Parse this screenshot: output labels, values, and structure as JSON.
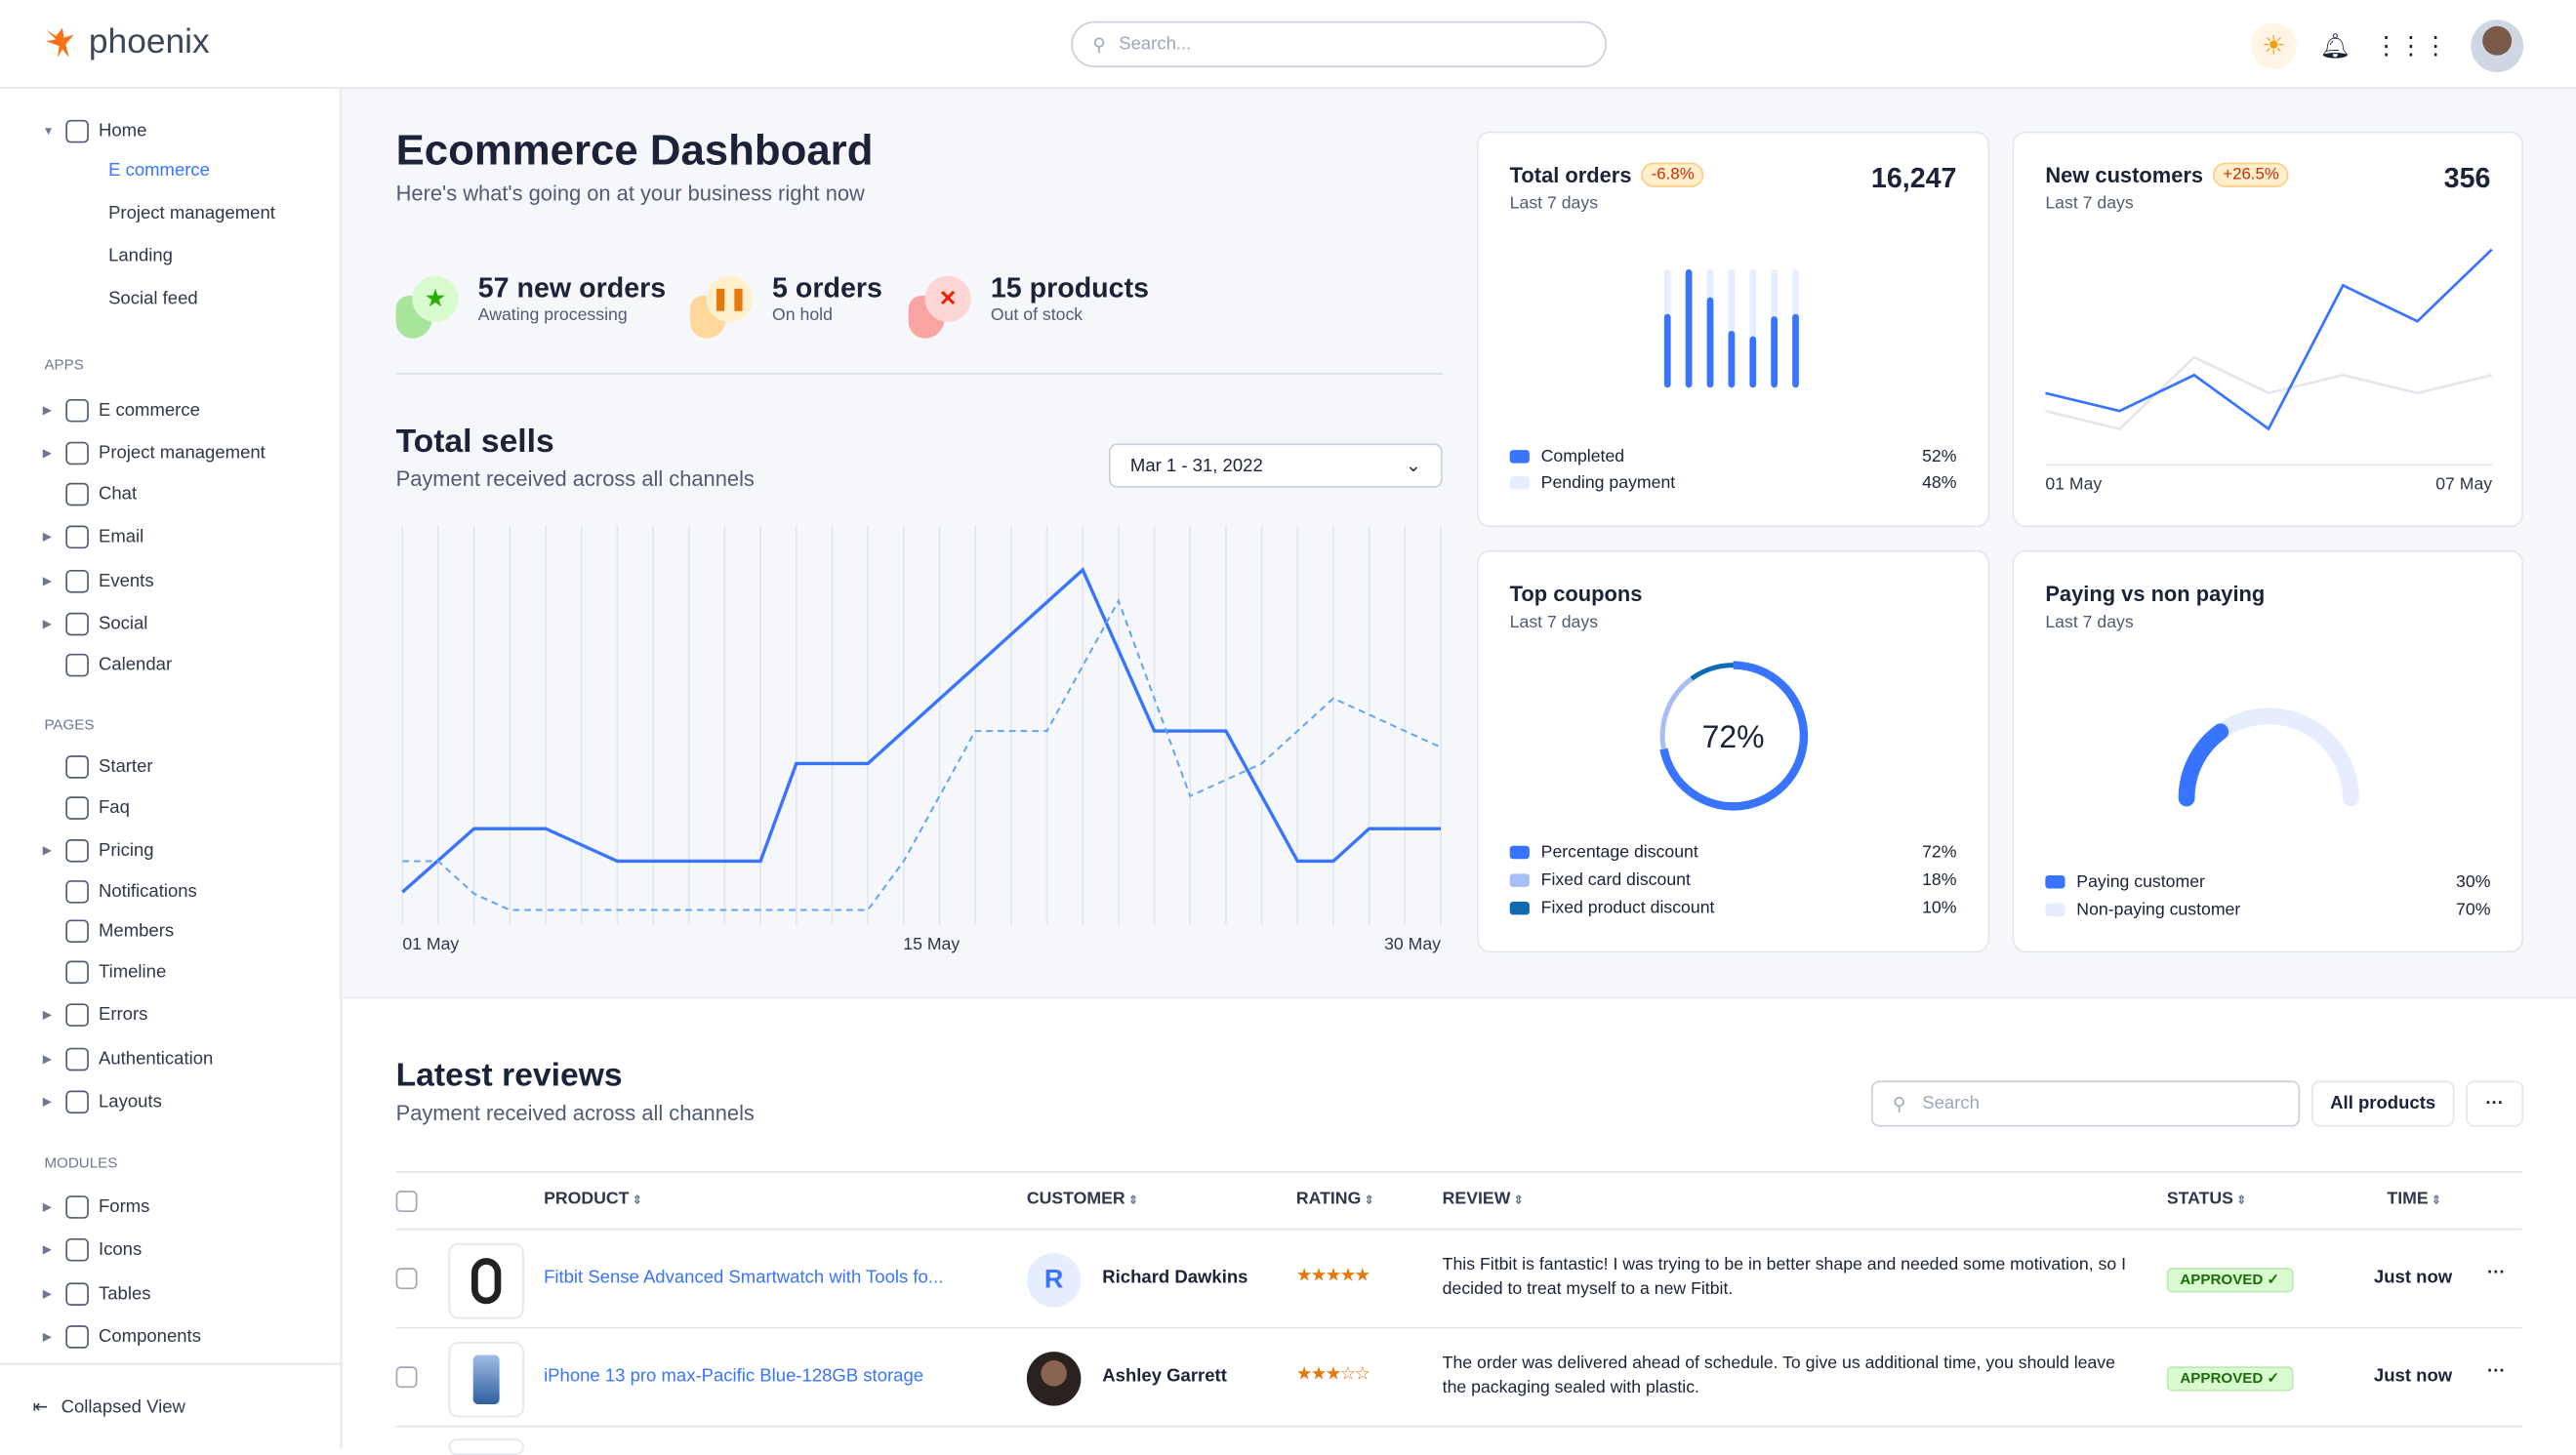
{
  "topbar": {
    "logo": "phoenix",
    "search_placeholder": "Search..."
  },
  "sidebar": {
    "home": "Home",
    "home_items": [
      "E commerce",
      "Project management",
      "Landing",
      "Social feed"
    ],
    "apps_label": "APPS",
    "apps": [
      "E commerce",
      "Project management",
      "Chat",
      "Email",
      "Events",
      "Social",
      "Calendar"
    ],
    "pages_label": "PAGES",
    "pages": [
      "Starter",
      "Faq",
      "Pricing",
      "Notifications",
      "Members",
      "Timeline",
      "Errors",
      "Authentication",
      "Layouts"
    ],
    "modules_label": "MODULES",
    "modules": [
      "Forms",
      "Icons",
      "Tables",
      "Components"
    ],
    "collapsed": "Collapsed View"
  },
  "header": {
    "title": "Ecommerce Dashboard",
    "subtitle": "Here's what's going on at your business right now"
  },
  "stats": [
    {
      "title": "57 new orders",
      "sub": "Awating processing",
      "icon": "star-icon",
      "color": "#25b003"
    },
    {
      "title": "5 orders",
      "sub": "On hold",
      "icon": "pause-icon",
      "color": "#e5780b"
    },
    {
      "title": "15 products",
      "sub": "Out of stock",
      "icon": "x-icon",
      "color": "#ec1f00"
    }
  ],
  "sells": {
    "title": "Total sells",
    "subtitle": "Payment received across all channels",
    "date_range": "Mar 1 - 31, 2022",
    "x_labels": [
      "01 May",
      "15 May",
      "30 May"
    ]
  },
  "chart_data": [
    {
      "type": "line",
      "title": "Total sells",
      "x_range": [
        1,
        30
      ],
      "x_labels": [
        "01 May",
        "15 May",
        "30 May"
      ],
      "series": [
        {
          "style": "solid",
          "color": "#3874ff",
          "x": [
            1,
            3,
            5,
            7,
            11,
            12,
            14,
            20,
            22,
            24,
            26,
            27,
            28,
            30
          ],
          "y": [
            20,
            59,
            59,
            39,
            39,
            99,
            99,
            218,
            119,
            119,
            39,
            39,
            59,
            59
          ]
        },
        {
          "style": "dashed",
          "color": "#60a5fa",
          "x": [
            1,
            2,
            3,
            4,
            14,
            15,
            17,
            19,
            21,
            23,
            25,
            27,
            30
          ],
          "y": [
            39,
            39,
            19,
            9,
            9,
            39,
            119,
            119,
            199,
            79,
            99,
            139,
            109
          ]
        }
      ],
      "ylim": [
        0,
        220
      ]
    },
    {
      "type": "bar",
      "title": "Total orders",
      "completed": [
        60,
        100,
        75,
        45,
        40,
        58,
        60
      ],
      "max": 100
    },
    {
      "type": "line",
      "title": "New customers",
      "x_labels": [
        "01 May",
        "07 May"
      ],
      "series": [
        {
          "color": "#3874ff",
          "y": [
            40,
            30,
            50,
            20,
            100,
            80,
            120
          ]
        },
        {
          "color": "#e3e6ed",
          "y": [
            30,
            20,
            60,
            40,
            50,
            40,
            50
          ]
        }
      ],
      "ylim": [
        0,
        130
      ]
    },
    {
      "type": "pie",
      "title": "Top coupons",
      "values": [
        72,
        18,
        10
      ]
    },
    {
      "type": "gauge",
      "title": "Paying vs non paying",
      "values": [
        30,
        70
      ]
    }
  ],
  "total_orders": {
    "title": "Total orders",
    "badge": "-6.8%",
    "sub": "Last 7 days",
    "value": "16,247",
    "legend": [
      {
        "label": "Completed",
        "pct": "52%",
        "color": "#3874ff"
      },
      {
        "label": "Pending payment",
        "pct": "48%",
        "color": "#e5edff"
      }
    ]
  },
  "new_customers": {
    "title": "New customers",
    "badge": "+26.5%",
    "sub": "Last 7 days",
    "value": "356",
    "x_labels": [
      "01 May",
      "07 May"
    ]
  },
  "top_coupons": {
    "title": "Top coupons",
    "sub": "Last 7 days",
    "center": "72%",
    "legend": [
      {
        "label": "Percentage discount",
        "pct": "72%",
        "color": "#3874ff"
      },
      {
        "label": "Fixed card discount",
        "pct": "18%",
        "color": "#a6bdf5"
      },
      {
        "label": "Fixed product discount",
        "pct": "10%",
        "color": "#0e6ab3"
      }
    ]
  },
  "paying": {
    "title": "Paying vs non paying",
    "sub": "Last 7 days",
    "legend": [
      {
        "label": "Paying customer",
        "pct": "30%",
        "color": "#3874ff"
      },
      {
        "label": "Non-paying customer",
        "pct": "70%",
        "color": "#e5edff"
      }
    ]
  },
  "reviews": {
    "title": "Latest reviews",
    "subtitle": "Payment received across all channels",
    "search_placeholder": "Search",
    "filter": "All products",
    "more": "···",
    "columns": [
      "PRODUCT",
      "CUSTOMER",
      "RATING",
      "REVIEW",
      "STATUS",
      "TIME"
    ],
    "rows": [
      {
        "product": "Fitbit Sense Advanced Smartwatch with Tools fo...",
        "customer": "Richard Dawkins",
        "initial": "R",
        "rating": 5,
        "stars": "★★★★★",
        "review": "This Fitbit is fantastic! I was trying to be in better shape and needed some motivation, so I decided to treat myself to a new Fitbit.",
        "status": "APPROVED ✓",
        "time": "Just now",
        "more": "···"
      },
      {
        "product": "iPhone 13 pro max-Pacific Blue-128GB storage",
        "customer": "Ashley Garrett",
        "rating": 3,
        "stars": "★★★☆☆",
        "review": "The order was delivered ahead of schedule. To give us additional time, you should leave the packaging sealed with plastic.",
        "status": "APPROVED ✓",
        "time": "Just now",
        "more": "···"
      }
    ]
  }
}
